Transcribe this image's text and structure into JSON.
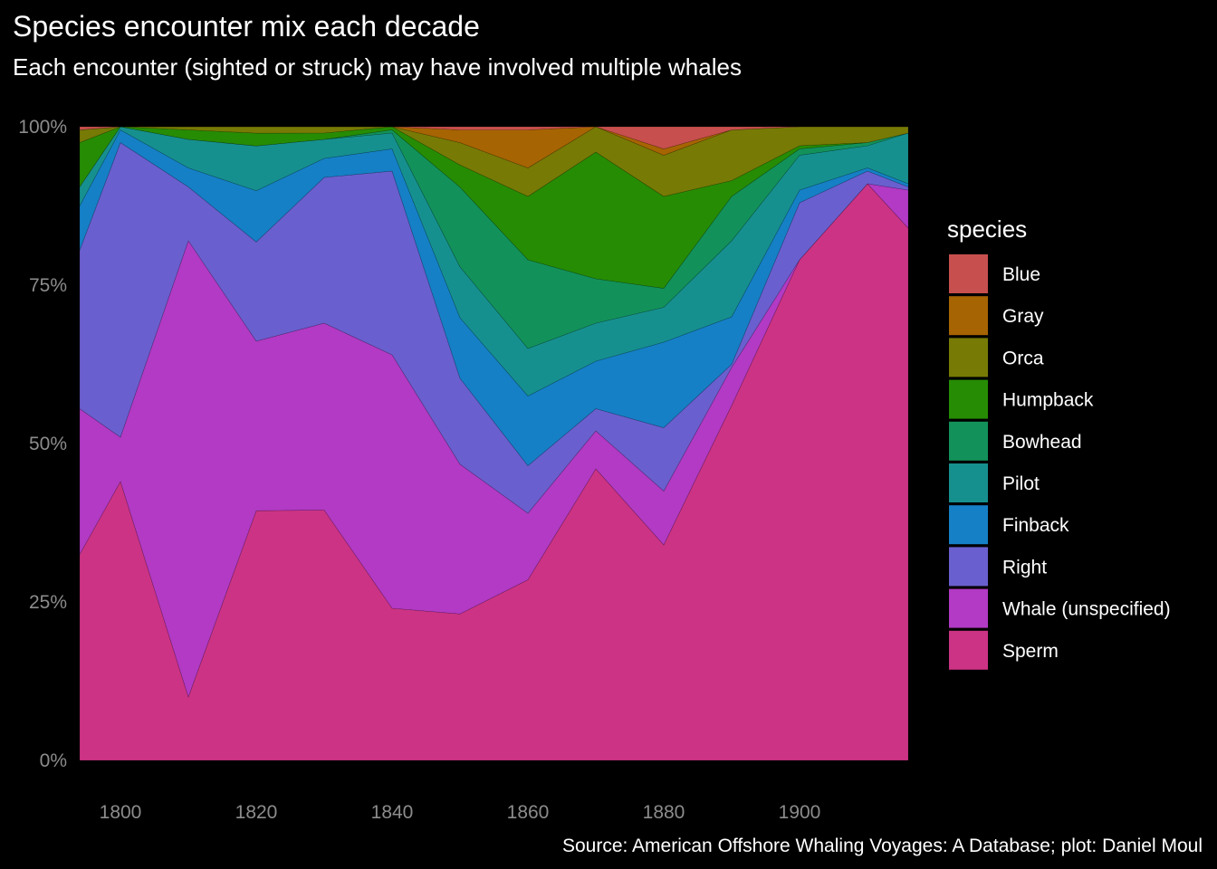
{
  "chart_data": {
    "type": "area",
    "stacking": "percent",
    "title": "Species encounter mix each decade",
    "subtitle": "Each encounter (sighted or struck) may have involved multiple whales",
    "caption": "Source: American Offshore Whaling Voyages: A Database; plot: Daniel Moul",
    "legend_title": "species",
    "legend_position": "right",
    "grid": false,
    "xlim": [
      1794,
      1916
    ],
    "ylim": [
      0,
      1
    ],
    "x_ticks": [
      "1800",
      "1820",
      "1840",
      "1860",
      "1880",
      "1900"
    ],
    "y_ticks": [
      "0%",
      "25%",
      "50%",
      "75%",
      "100%"
    ],
    "x": [
      1794,
      1800,
      1810,
      1820,
      1830,
      1840,
      1850,
      1860,
      1870,
      1880,
      1890,
      1900,
      1910,
      1916
    ],
    "series": [
      {
        "name": "Sperm",
        "color": "#cc3385",
        "values": [
          0.325,
          0.44,
          0.1,
          0.39,
          0.395,
          0.24,
          0.23,
          0.285,
          0.46,
          0.34,
          0.56,
          0.79,
          0.91,
          0.84
        ]
      },
      {
        "name": "Whale (unspecified)",
        "color": "#b23ac4",
        "values": [
          0.23,
          0.07,
          0.72,
          0.265,
          0.295,
          0.4,
          0.235,
          0.105,
          0.06,
          0.085,
          0.06,
          0.0,
          0.0,
          0.06
        ]
      },
      {
        "name": "Right",
        "color": "#6a5fcf",
        "values": [
          0.25,
          0.465,
          0.085,
          0.155,
          0.23,
          0.29,
          0.135,
          0.075,
          0.035,
          0.1,
          0.005,
          0.09,
          0.02,
          0.005
        ]
      },
      {
        "name": "Finback",
        "color": "#1580c6",
        "values": [
          0.07,
          0.02,
          0.03,
          0.08,
          0.03,
          0.035,
          0.095,
          0.11,
          0.075,
          0.135,
          0.075,
          0.02,
          0.005,
          0.005
        ]
      },
      {
        "name": "Pilot",
        "color": "#16908f",
        "values": [
          0.03,
          0.005,
          0.045,
          0.07,
          0.03,
          0.025,
          0.08,
          0.075,
          0.06,
          0.055,
          0.12,
          0.055,
          0.035,
          0.08
        ]
      },
      {
        "name": "Bowhead",
        "color": "#12925a",
        "values": [
          0.0,
          0.0,
          0.0,
          0.0,
          0.0,
          0.005,
          0.125,
          0.14,
          0.07,
          0.03,
          0.07,
          0.01,
          0.005,
          0.0
        ]
      },
      {
        "name": "Humpback",
        "color": "#268c04",
        "values": [
          0.07,
          0.0,
          0.015,
          0.02,
          0.01,
          0.005,
          0.035,
          0.1,
          0.2,
          0.145,
          0.025,
          0.005,
          0.0,
          0.0
        ]
      },
      {
        "name": "Orca",
        "color": "#777a05",
        "values": [
          0.02,
          0.0,
          0.005,
          0.01,
          0.01,
          0.0,
          0.035,
          0.045,
          0.04,
          0.065,
          0.08,
          0.03,
          0.025,
          0.01
        ]
      },
      {
        "name": "Gray",
        "color": "#a76402",
        "values": [
          0.0,
          0.0,
          0.0,
          0.0,
          0.0,
          0.0,
          0.02,
          0.06,
          0.0,
          0.01,
          0.0,
          0.0,
          0.0,
          0.0
        ]
      },
      {
        "name": "Blue",
        "color": "#c74f4e",
        "values": [
          0.005,
          0.0,
          0.0,
          0.0,
          0.0,
          0.0,
          0.005,
          0.005,
          0.0,
          0.035,
          0.005,
          0.0,
          0.0,
          0.0
        ]
      }
    ]
  }
}
